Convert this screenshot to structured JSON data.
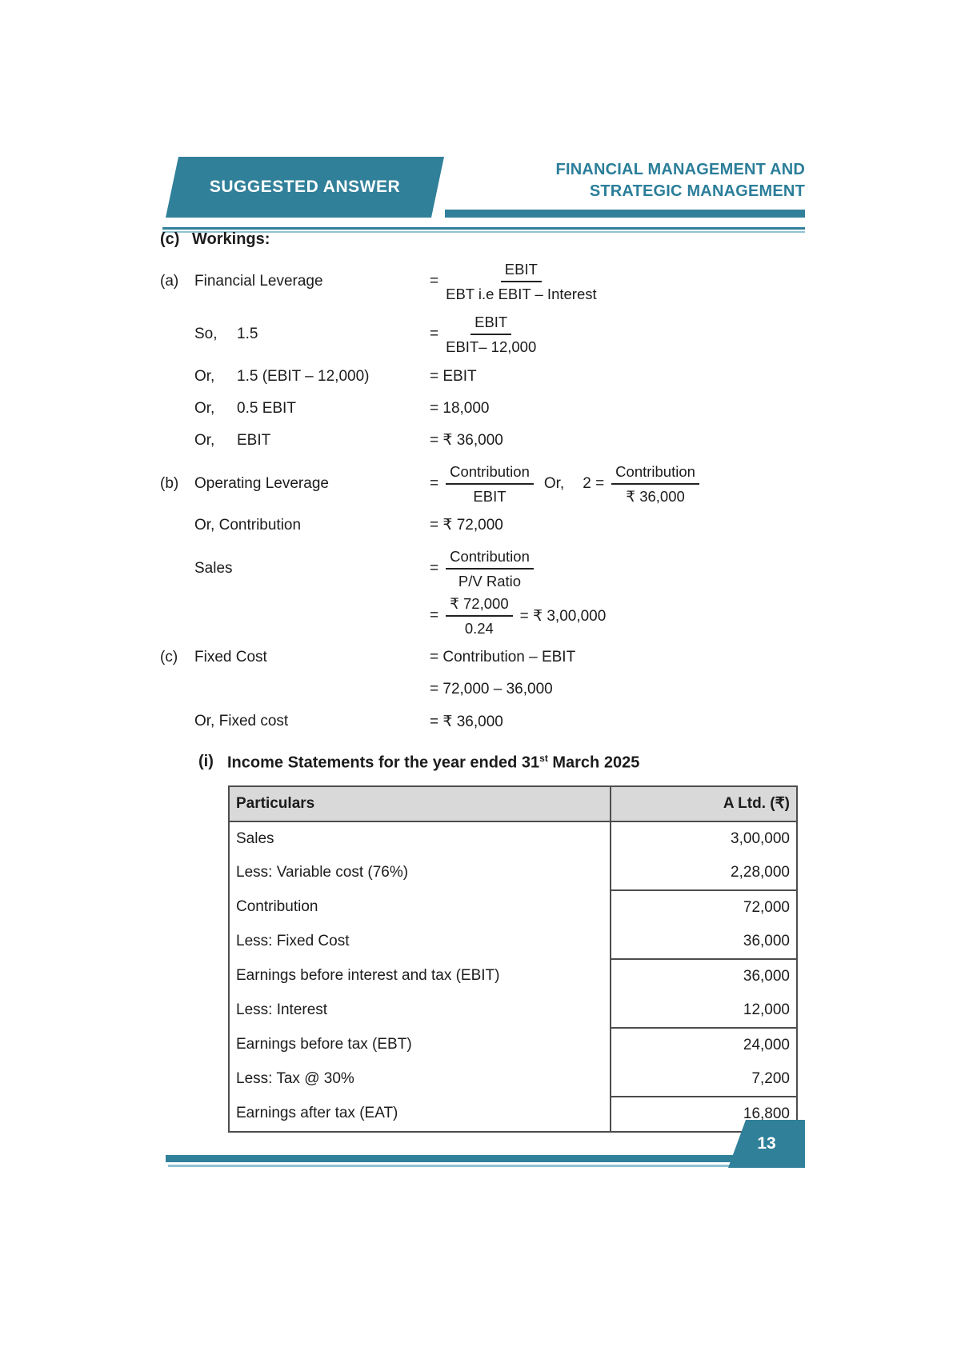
{
  "colors": {
    "accent": "#31809a",
    "accent_text": "#2b7e99",
    "accent_light": "#8fc3d2",
    "table_border": "#4d4d4d",
    "table_header_bg": "#d9d9d9"
  },
  "header": {
    "banner_label": "SUGGESTED ANSWER",
    "title_line1": "FINANCIAL MANAGEMENT AND",
    "title_line2": "STRATEGIC MANAGEMENT"
  },
  "workings": {
    "marker": "(c)",
    "heading": "Workings:",
    "fin": {
      "marker": "(a)",
      "label": "Financial Leverage",
      "eq": "=",
      "frac_num": "EBIT",
      "frac_den": "EBT i.e EBIT – Interest"
    },
    "so": {
      "word": "So,",
      "lhs": "1.5",
      "eq": "=",
      "frac_num": "EBIT",
      "frac_den": "EBIT– 12,000"
    },
    "or1": {
      "word": "Or,",
      "lhs": "1.5 (EBIT – 12,000)",
      "rhs": "= EBIT"
    },
    "or2": {
      "word": "Or,",
      "lhs": "0.5 EBIT",
      "rhs": "= 18,000"
    },
    "or3": {
      "word": "Or,",
      "lhs": "EBIT",
      "rhs": "= ₹ 36,000"
    },
    "op": {
      "marker": "(b)",
      "label": "Operating Leverage",
      "eq": "=",
      "frac1_num": "Contribution",
      "frac1_den": "EBIT",
      "mid": "Or,",
      "lhs2": "2 =",
      "frac2_num": "Contribution",
      "frac2_den": "₹ 36,000"
    },
    "contrib": {
      "lhs": "Or, Contribution",
      "rhs": "= ₹ 72,000"
    },
    "sales": {
      "label": "Sales",
      "eq": "=",
      "frac_num": "Contribution",
      "frac_den": "P/V Ratio"
    },
    "sales2": {
      "eq": "=",
      "frac_num": "₹ 72,000",
      "frac_den": "0.24",
      "tail": "= ₹ 3,00,000"
    },
    "fixed": {
      "marker": "(c)",
      "label": "Fixed Cost",
      "rhs": "= Contribution – EBIT"
    },
    "fixed2": {
      "rhs": "= 72,000 – 36,000"
    },
    "fixed3": {
      "lhs": "Or, Fixed cost",
      "rhs": "= ₹ 36,000"
    }
  },
  "income": {
    "marker": "(i)",
    "heading_pre": "Income Statements for the year ended 31",
    "heading_sup": "st",
    "heading_post": " March 2025",
    "table": {
      "col1": "Particulars",
      "col2": "A Ltd. (₹)",
      "rows": [
        {
          "label": "Sales",
          "value": "3,00,000",
          "sep_after": false
        },
        {
          "label": "Less: Variable cost (76%)",
          "value": "2,28,000",
          "sep_after": true
        },
        {
          "label": "Contribution",
          "value": "72,000",
          "sep_after": false
        },
        {
          "label": "Less: Fixed Cost",
          "value": "36,000",
          "sep_after": true
        },
        {
          "label": "Earnings before interest and tax (EBIT)",
          "value": "36,000",
          "sep_after": false
        },
        {
          "label": "Less: Interest",
          "value": "12,000",
          "sep_after": true
        },
        {
          "label": "Earnings before tax (EBT)",
          "value": "24,000",
          "sep_after": false
        },
        {
          "label": "Less: Tax @ 30%",
          "value": "7,200",
          "sep_after": true
        },
        {
          "label": "Earnings after tax (EAT)",
          "value": "16,800",
          "sep_after": false
        }
      ]
    }
  },
  "footer": {
    "page": "13"
  }
}
